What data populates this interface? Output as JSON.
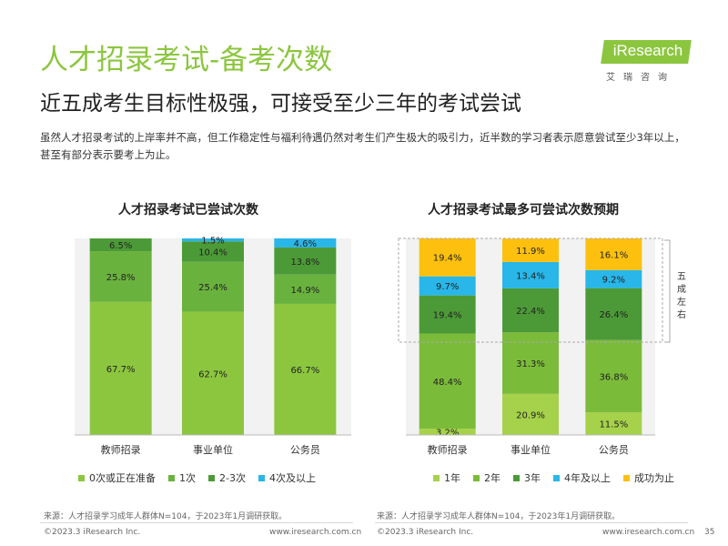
{
  "header": {
    "title": "人才招录考试-备考次数",
    "subtitle": "近五成考生目标性极强，可接受至少三年的考试尝试",
    "body": "虽然人才招录考试的上岸率并不高，但工作稳定性与福利待遇仍然对考生们产生极大的吸引力，近半数的学习者表示愿意尝试至少3年以上，甚至有部分表示要考上为止。"
  },
  "logo": {
    "text": "iResearch",
    "sub": "艾瑞咨询"
  },
  "annotation": "五成左右",
  "chart_data": [
    {
      "type": "bar",
      "stacked": true,
      "title": "人才招录考试已尝试次数",
      "categories": [
        "教师招录",
        "事业单位",
        "公务员"
      ],
      "series": [
        {
          "name": "0次或正在准备",
          "color": "#8cc63f",
          "values": [
            67.7,
            62.7,
            66.7
          ]
        },
        {
          "name": "1次",
          "color": "#6ab23e",
          "values": [
            25.8,
            25.4,
            14.9
          ]
        },
        {
          "name": "2-3次",
          "color": "#4c9a37",
          "values": [
            6.5,
            10.4,
            13.8
          ]
        },
        {
          "name": "4次及以上",
          "color": "#29b6e8",
          "values": [
            0,
            1.5,
            4.6
          ]
        }
      ],
      "labels": [
        [
          "67.7%",
          "62.7%",
          "66.7%"
        ],
        [
          "25.8%",
          "25.4%",
          "14.9%"
        ],
        [
          "6.5%",
          "10.4%",
          "13.8%"
        ],
        [
          "",
          "1.5%",
          "4.6%"
        ]
      ],
      "ylim": [
        0,
        100
      ],
      "legend": "bottom"
    },
    {
      "type": "bar",
      "stacked": true,
      "title": "人才招录考试最多可尝试次数预期",
      "categories": [
        "教师招录",
        "事业单位",
        "公务员"
      ],
      "series": [
        {
          "name": "1年",
          "color": "#a6d14a",
          "values": [
            3.2,
            20.9,
            11.5
          ]
        },
        {
          "name": "2年",
          "color": "#7bbb3a",
          "values": [
            48.4,
            31.3,
            36.8
          ]
        },
        {
          "name": "3年",
          "color": "#4c9a37",
          "values": [
            19.4,
            22.4,
            26.4
          ]
        },
        {
          "name": "4年及以上",
          "color": "#29b6e8",
          "values": [
            9.7,
            13.4,
            9.2
          ]
        },
        {
          "name": "成功为止",
          "color": "#fdc00f",
          "values": [
            19.4,
            11.9,
            16.1
          ]
        }
      ],
      "labels": [
        [
          "3.2%",
          "20.9%",
          "11.5%"
        ],
        [
          "48.4%",
          "31.3%",
          "36.8%"
        ],
        [
          "19.4%",
          "22.4%",
          "26.4%"
        ],
        [
          "9.7%",
          "13.4%",
          "9.2%"
        ],
        [
          "19.4%",
          "11.9%",
          "16.1%"
        ]
      ],
      "ylim": [
        0,
        100
      ],
      "legend": "bottom"
    }
  ],
  "sources": {
    "left": "来源：人才招录学习成年人群体N=104，于2023年1月调研获取。",
    "right": "来源：人才招录学习成年人群体N=104，于2023年1月调研获取。"
  },
  "footer": {
    "copyright": "©2023.3 iResearch Inc.",
    "site": "www.iresearch.com.cn",
    "page": "35"
  }
}
